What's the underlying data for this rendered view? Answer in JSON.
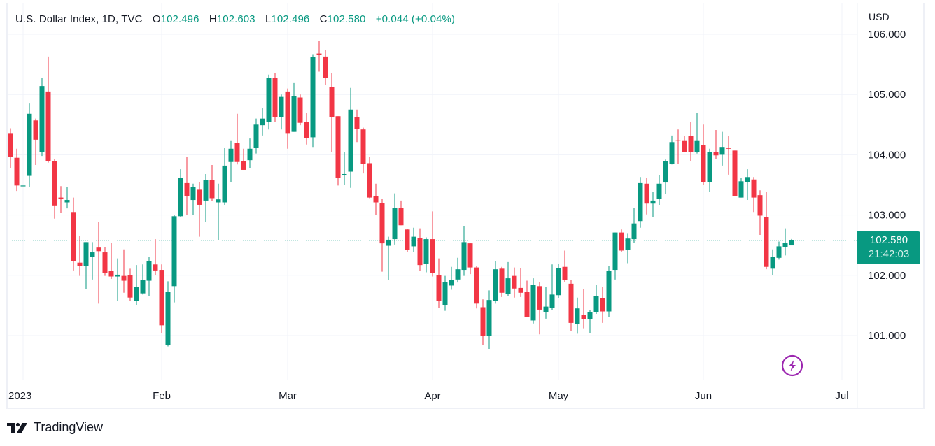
{
  "header": {
    "title": "U.S. Dollar Index, 1D, TVC",
    "open_label": "O",
    "open_value": "102.496",
    "high_label": "H",
    "high_value": "102.603",
    "low_label": "L",
    "low_value": "102.496",
    "close_label": "C",
    "close_value": "102.580",
    "change": "+0.044 (+0.04%)"
  },
  "price_axis": {
    "currency": "USD",
    "ticks": [
      "106.000",
      "105.000",
      "104.000",
      "103.000",
      "102.000",
      "101.000"
    ]
  },
  "last_price": {
    "value": "102.580",
    "countdown": "21:42:03"
  },
  "branding": {
    "name": "TradingView"
  },
  "icons": {
    "bolt": "lightning-icon"
  },
  "colors": {
    "up": "#089981",
    "down": "#f23645",
    "grid": "#f0f3fa",
    "bolt": "#9c27b0"
  },
  "chart_data": {
    "type": "candlestick",
    "title": "U.S. Dollar Index, 1D, TVC",
    "ylabel": "USD",
    "ylim": [
      100.4,
      106.0
    ],
    "yticks": [
      101,
      102,
      103,
      104,
      105,
      106
    ],
    "grid": true,
    "last_value": 102.58,
    "xticks": [
      {
        "label": "2023",
        "bar": 2
      },
      {
        "label": "Feb",
        "bar": 24
      },
      {
        "label": "Mar",
        "bar": 44
      },
      {
        "label": "Apr",
        "bar": 67
      },
      {
        "label": "May",
        "bar": 87
      },
      {
        "label": "Jun",
        "bar": 110
      },
      {
        "label": "Jul",
        "bar": 132
      }
    ],
    "ohlc_fields": [
      "open",
      "high",
      "low",
      "close"
    ],
    "ohlc": [
      [
        104.36,
        104.44,
        103.78,
        103.97
      ],
      [
        103.95,
        104.1,
        103.4,
        103.49
      ],
      [
        103.49,
        103.49,
        103.49,
        103.49
      ],
      [
        103.65,
        104.85,
        103.46,
        104.68
      ],
      [
        104.57,
        104.6,
        103.83,
        104.25
      ],
      [
        104.05,
        105.27,
        103.98,
        105.14
      ],
      [
        105.05,
        105.63,
        103.87,
        103.89
      ],
      [
        103.9,
        103.93,
        102.94,
        103.16
      ],
      [
        103.29,
        103.48,
        103.03,
        103.27
      ],
      [
        103.21,
        103.47,
        103.11,
        103.25
      ],
      [
        103.05,
        103.29,
        102.08,
        102.23
      ],
      [
        102.21,
        102.65,
        101.99,
        102.16
      ],
      [
        102.16,
        102.55,
        101.77,
        102.55
      ],
      [
        102.3,
        102.55,
        101.93,
        102.38
      ],
      [
        102.46,
        102.89,
        101.53,
        102.4
      ],
      [
        102.38,
        102.47,
        101.99,
        102.04
      ],
      [
        102.07,
        102.54,
        101.94,
        101.98
      ],
      [
        101.98,
        102.28,
        101.58,
        102.01
      ],
      [
        101.99,
        102.43,
        101.71,
        101.91
      ],
      [
        102.0,
        102.11,
        101.57,
        101.63
      ],
      [
        101.57,
        102.17,
        101.5,
        101.81
      ],
      [
        101.7,
        102.18,
        101.68,
        101.92
      ],
      [
        101.91,
        102.31,
        101.65,
        102.24
      ],
      [
        102.18,
        102.6,
        102.01,
        102.08
      ],
      [
        102.09,
        102.18,
        101.04,
        101.17
      ],
      [
        100.84,
        101.9,
        100.82,
        101.73
      ],
      [
        101.82,
        103.0,
        101.55,
        102.98
      ],
      [
        102.98,
        103.76,
        102.97,
        103.62
      ],
      [
        103.53,
        103.96,
        103.0,
        103.32
      ],
      [
        103.25,
        103.52,
        103.0,
        103.46
      ],
      [
        103.42,
        103.55,
        102.64,
        103.17
      ],
      [
        103.24,
        103.68,
        102.89,
        103.58
      ],
      [
        103.58,
        103.83,
        103.23,
        103.28
      ],
      [
        103.21,
        103.52,
        102.58,
        103.26
      ],
      [
        103.21,
        104.12,
        103.17,
        103.82
      ],
      [
        103.88,
        104.24,
        103.54,
        104.1
      ],
      [
        104.2,
        104.68,
        103.84,
        103.88
      ],
      [
        103.89,
        104.1,
        103.75,
        103.75
      ],
      [
        103.91,
        104.27,
        103.78,
        104.1
      ],
      [
        104.12,
        104.6,
        104.02,
        104.5
      ],
      [
        104.49,
        104.78,
        104.32,
        104.6
      ],
      [
        104.55,
        105.33,
        104.42,
        105.27
      ],
      [
        105.27,
        105.36,
        104.55,
        104.63
      ],
      [
        104.62,
        105.0,
        104.42,
        104.96
      ],
      [
        105.05,
        105.1,
        104.1,
        104.36
      ],
      [
        104.38,
        105.19,
        104.38,
        104.97
      ],
      [
        104.95,
        105.0,
        104.49,
        104.53
      ],
      [
        104.54,
        104.7,
        104.17,
        104.28
      ],
      [
        104.29,
        105.67,
        104.13,
        105.62
      ],
      [
        105.68,
        105.89,
        105.38,
        105.66
      ],
      [
        105.63,
        105.74,
        105.16,
        105.27
      ],
      [
        105.13,
        105.36,
        104.04,
        104.63
      ],
      [
        104.64,
        104.64,
        103.49,
        103.62
      ],
      [
        103.67,
        104.05,
        103.5,
        103.68
      ],
      [
        103.72,
        105.11,
        103.45,
        104.75
      ],
      [
        104.63,
        104.75,
        104.21,
        104.43
      ],
      [
        104.42,
        104.45,
        103.69,
        103.85
      ],
      [
        103.86,
        103.96,
        103.28,
        103.29
      ],
      [
        103.31,
        103.52,
        103.0,
        103.21
      ],
      [
        103.2,
        103.27,
        102.06,
        102.53
      ],
      [
        102.49,
        102.64,
        101.92,
        102.59
      ],
      [
        102.6,
        103.36,
        102.51,
        103.12
      ],
      [
        103.12,
        103.24,
        102.83,
        102.83
      ],
      [
        102.76,
        102.77,
        102.39,
        102.42
      ],
      [
        102.48,
        102.79,
        102.38,
        102.64
      ],
      [
        102.62,
        102.78,
        102.07,
        102.17
      ],
      [
        102.19,
        102.63,
        102.05,
        102.6
      ],
      [
        102.6,
        103.06,
        101.98,
        102.04
      ],
      [
        102.0,
        102.28,
        101.46,
        101.57
      ],
      [
        101.51,
        101.99,
        101.41,
        101.89
      ],
      [
        101.83,
        102.14,
        101.76,
        101.92
      ],
      [
        101.93,
        102.29,
        101.88,
        102.1
      ],
      [
        102.09,
        102.81,
        101.99,
        102.55
      ],
      [
        102.53,
        102.53,
        102.02,
        102.13
      ],
      [
        102.13,
        102.16,
        101.45,
        101.53
      ],
      [
        101.47,
        101.6,
        100.84,
        100.99
      ],
      [
        100.99,
        101.75,
        100.78,
        101.59
      ],
      [
        101.57,
        102.24,
        101.53,
        102.1
      ],
      [
        102.11,
        102.14,
        101.64,
        101.71
      ],
      [
        101.69,
        102.22,
        101.66,
        101.95
      ],
      [
        101.99,
        102.13,
        101.63,
        101.78
      ],
      [
        101.79,
        102.12,
        101.64,
        101.71
      ],
      [
        101.72,
        101.91,
        101.31,
        101.31
      ],
      [
        101.25,
        101.95,
        101.2,
        101.84
      ],
      [
        101.82,
        101.89,
        101.02,
        101.43
      ],
      [
        101.39,
        101.81,
        101.28,
        101.48
      ],
      [
        101.46,
        102.18,
        101.42,
        101.68
      ],
      [
        101.67,
        102.19,
        101.62,
        102.12
      ],
      [
        102.14,
        102.41,
        101.89,
        101.92
      ],
      [
        101.86,
        101.92,
        101.07,
        101.21
      ],
      [
        101.19,
        101.63,
        101.03,
        101.45
      ],
      [
        101.34,
        101.77,
        101.12,
        101.27
      ],
      [
        101.27,
        101.42,
        101.04,
        101.39
      ],
      [
        101.39,
        101.84,
        101.36,
        101.66
      ],
      [
        101.62,
        101.81,
        101.21,
        101.4
      ],
      [
        101.4,
        102.16,
        101.31,
        102.07
      ],
      [
        102.09,
        102.71,
        101.93,
        102.71
      ],
      [
        102.71,
        102.76,
        102.39,
        102.41
      ],
      [
        102.42,
        102.69,
        102.2,
        102.61
      ],
      [
        102.6,
        103.12,
        102.54,
        102.86
      ],
      [
        102.9,
        103.63,
        102.79,
        103.53
      ],
      [
        103.52,
        103.62,
        103.01,
        103.19
      ],
      [
        103.19,
        103.38,
        102.97,
        103.24
      ],
      [
        103.27,
        103.66,
        103.17,
        103.52
      ],
      [
        103.54,
        103.92,
        103.35,
        103.89
      ],
      [
        103.85,
        104.32,
        103.84,
        104.21
      ],
      [
        104.24,
        104.42,
        103.85,
        104.23
      ],
      [
        104.24,
        104.31,
        104.04,
        104.04
      ],
      [
        104.31,
        104.54,
        103.89,
        104.05
      ],
      [
        104.05,
        104.7,
        104.02,
        104.24
      ],
      [
        104.16,
        104.5,
        103.5,
        103.55
      ],
      [
        103.55,
        104.1,
        103.39,
        104.05
      ],
      [
        104.05,
        104.41,
        103.93,
        103.99
      ],
      [
        104.0,
        104.38,
        103.82,
        104.13
      ],
      [
        104.12,
        104.31,
        103.67,
        104.1
      ],
      [
        104.07,
        104.07,
        103.31,
        103.31
      ],
      [
        103.29,
        103.61,
        103.29,
        103.56
      ],
      [
        103.55,
        103.76,
        103.25,
        103.63
      ],
      [
        103.59,
        103.63,
        103.05,
        103.29
      ],
      [
        103.33,
        103.41,
        102.67,
        102.99
      ],
      [
        102.97,
        103.38,
        102.1,
        102.14
      ],
      [
        102.11,
        102.43,
        102.01,
        102.31
      ],
      [
        102.29,
        102.56,
        102.26,
        102.48
      ],
      [
        102.47,
        102.78,
        102.33,
        102.54
      ],
      [
        102.496,
        102.603,
        102.496,
        102.58
      ]
    ]
  }
}
